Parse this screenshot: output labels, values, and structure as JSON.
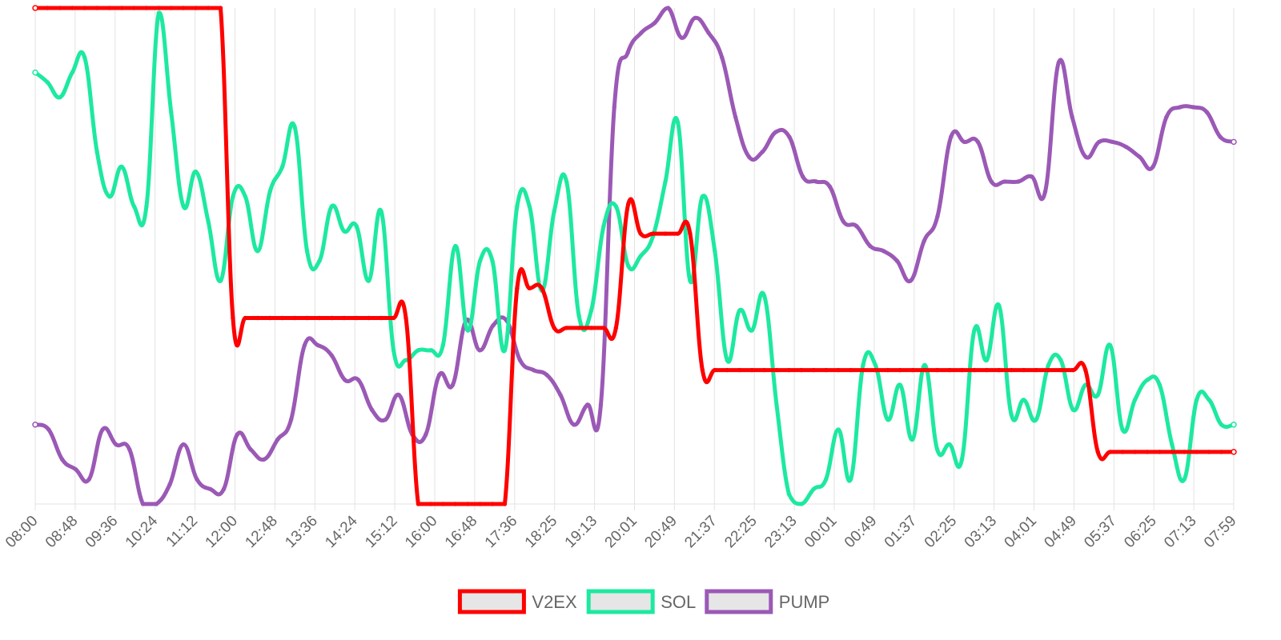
{
  "chart_data": {
    "type": "line",
    "title": "",
    "xlabel": "",
    "ylabel": "",
    "ylim": [
      0,
      100
    ],
    "grid": true,
    "legend_position": "bottom",
    "x_tick_labels": [
      "08:00",
      "08:48",
      "09:36",
      "10:24",
      "11:12",
      "12:00",
      "12:48",
      "13:36",
      "14:24",
      "15:12",
      "16:00",
      "16:48",
      "17:36",
      "18:25",
      "19:13",
      "20:01",
      "20:49",
      "21:37",
      "22:25",
      "23:13",
      "00:01",
      "00:49",
      "01:37",
      "02:25",
      "03:13",
      "04:01",
      "04:49",
      "05:37",
      "06:25",
      "07:13",
      "07:59"
    ],
    "series": [
      {
        "name": "V2EX",
        "color": "#ff0000",
        "values": [
          100,
          100,
          100,
          100,
          100,
          100,
          100,
          100,
          100,
          100,
          100,
          100,
          100,
          100,
          100,
          100,
          37.5,
          37.5,
          37.5,
          37.5,
          37.5,
          37.5,
          37.5,
          37.5,
          37.5,
          37.5,
          37.5,
          37.5,
          37.5,
          37.5,
          37.5,
          0,
          0,
          0,
          0,
          0,
          0,
          0,
          0,
          43.5,
          43.5,
          43.5,
          35.5,
          35.5,
          35.5,
          35.5,
          35.5,
          35.5,
          60.5,
          54.5,
          54.5,
          54.5,
          54.5,
          54.5,
          27,
          27,
          27,
          27,
          27,
          27,
          27,
          27,
          27,
          27,
          27,
          27,
          27,
          27,
          27,
          27,
          27,
          27,
          27,
          27,
          27,
          27,
          27,
          27,
          27,
          27,
          27,
          27,
          27,
          27,
          27,
          27,
          10.5,
          10.5,
          10.5,
          10.5,
          10.5,
          10.5,
          10.5,
          10.5,
          10.5,
          10.5,
          10.5,
          10.5
        ]
      },
      {
        "name": "SOL",
        "color": "#1de9a0",
        "values": [
          87,
          85,
          82,
          87,
          90,
          71,
          62,
          68,
          60,
          60,
          99,
          79,
          60,
          67,
          57,
          45,
          62,
          62,
          51,
          63,
          68,
          76,
          51,
          49,
          60,
          55,
          56,
          45,
          59,
          31,
          29,
          31,
          31,
          32,
          52,
          35,
          49,
          49,
          31,
          60,
          60,
          43,
          59,
          65,
          38,
          39,
          56,
          60,
          48,
          50,
          54,
          65,
          77,
          45,
          62,
          51,
          29,
          39,
          35,
          42,
          20,
          2,
          0,
          3,
          5,
          15,
          5,
          28,
          28,
          17,
          24,
          13,
          28,
          11,
          12,
          9,
          35,
          29,
          40,
          18,
          21,
          17,
          28,
          29,
          19,
          24,
          22,
          32,
          15,
          21,
          25,
          24,
          12,
          5,
          21,
          21,
          16,
          16
        ]
      },
      {
        "name": "PUMP",
        "color": "#9b59b6",
        "values": [
          16,
          15,
          9,
          7,
          5,
          15,
          12,
          11,
          0,
          0,
          4,
          12,
          5,
          3,
          3,
          14,
          11,
          9,
          13,
          17,
          32,
          32,
          30,
          25,
          25,
          19,
          17,
          22,
          14,
          14,
          26,
          24,
          37,
          31,
          36,
          37,
          29,
          27,
          26,
          22,
          16,
          20,
          20,
          80,
          91,
          95,
          97,
          100,
          94,
          98,
          95,
          90,
          78,
          70,
          71,
          75,
          74,
          66,
          65,
          64,
          57,
          56,
          52,
          51,
          49,
          45,
          53,
          58,
          74,
          73,
          73,
          65,
          65,
          65,
          66,
          63,
          89,
          78,
          70,
          73,
          73,
          72,
          70,
          68,
          78,
          80,
          80,
          79,
          74,
          73
        ]
      }
    ]
  }
}
